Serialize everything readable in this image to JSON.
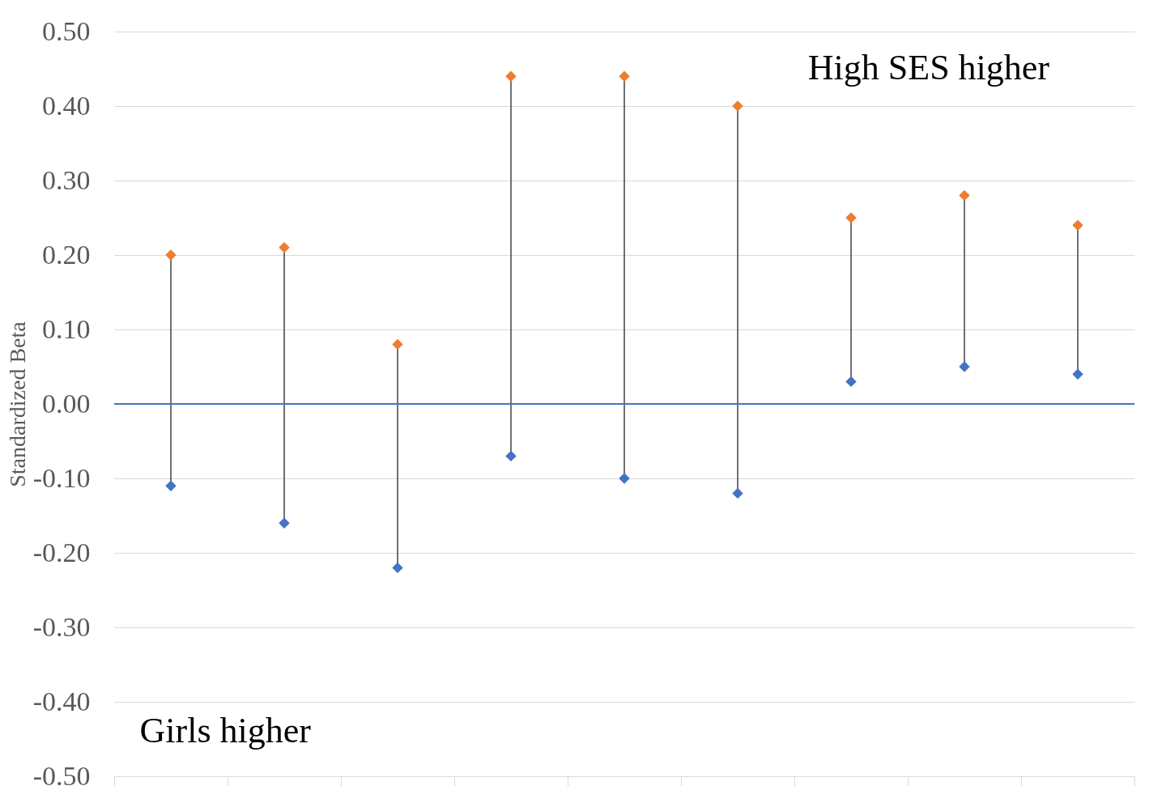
{
  "chart_data": {
    "type": "scatter",
    "ylabel": "Standardized Beta",
    "categories": [
      null,
      null,
      null,
      null,
      null,
      null,
      null,
      null,
      null
    ],
    "series": [
      {
        "color": "#ed7d31",
        "values": [
          0.2,
          0.21,
          0.08,
          0.44,
          0.44,
          0.4,
          0.25,
          0.28,
          0.24
        ]
      },
      {
        "color": "#4472c4",
        "values": [
          -0.11,
          -0.16,
          -0.22,
          -0.07,
          -0.1,
          -0.12,
          0.03,
          0.05,
          0.04
        ]
      }
    ],
    "ylim": [
      -0.5,
      0.5
    ],
    "yticks": [
      {
        "value": -0.5,
        "label": "-0.50"
      },
      {
        "value": -0.4,
        "label": "-0.40"
      },
      {
        "value": -0.3,
        "label": "-0.30"
      },
      {
        "value": -0.2,
        "label": "-0.20"
      },
      {
        "value": -0.1,
        "label": "-0.10"
      },
      {
        "value": 0,
        "label": "0.00"
      },
      {
        "value": 0.1,
        "label": "0.10"
      },
      {
        "value": 0.2,
        "label": "0.20"
      },
      {
        "value": 0.3,
        "label": "0.30"
      },
      {
        "value": 0.4,
        "label": "0.40"
      },
      {
        "value": 0.5,
        "label": "0.50"
      }
    ],
    "ref_lines": [
      {
        "axis": "y",
        "value": 0,
        "color": "#4472c4"
      }
    ],
    "annotations": [
      "High SES higher",
      "Girls higher"
    ],
    "grid": "y",
    "marker": "diamond",
    "tick_labels": "y"
  }
}
